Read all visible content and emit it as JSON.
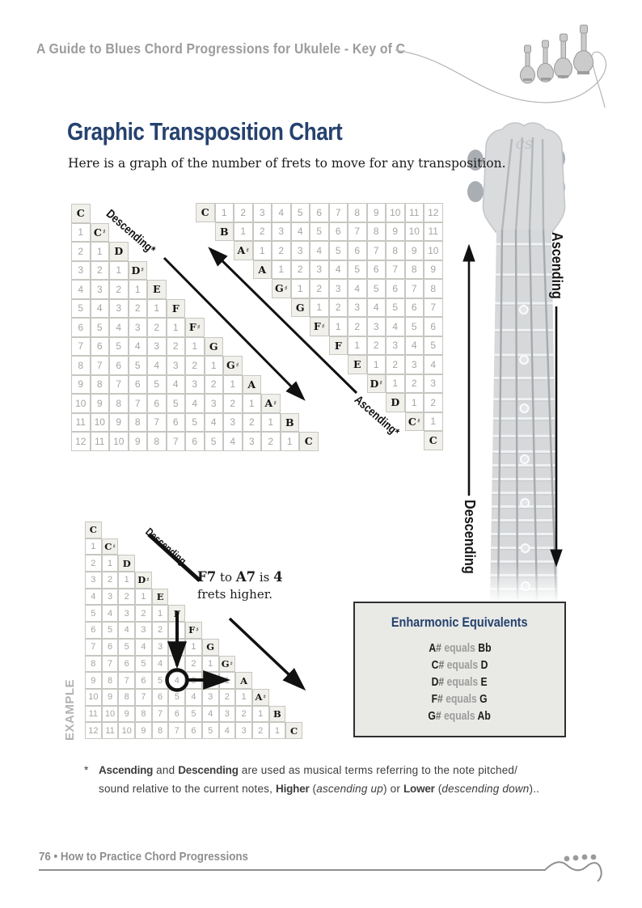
{
  "page": {
    "header": "A Guide to Blues Chord Progressions for Ukulele - Key of C",
    "title": "Graphic Transposition Chart",
    "subtitle": "Here is a graph of the number of frets to move for any transposition.",
    "footer": "76 • How to Practice Chord Progressions"
  },
  "labels": {
    "descending_star": "Descending*",
    "ascending_star": "Ascending*",
    "example_descending": "Descending",
    "example": "EXAMPLE",
    "neck_ascending": "Ascending",
    "neck_descending": "Descending",
    "headstock_logo": "CS"
  },
  "colors": {
    "title_navy": "#25426f",
    "header_gray": "#9c9c9c",
    "number_gray": "#a5a5a1",
    "note_cell_bg": "#f1f0eb",
    "cell_border": "#c7c7c2",
    "enharmonic_box_bg": "#e9e9e6",
    "footer_gray": "#8e8e8e"
  },
  "tables": {
    "descending": {
      "type": "lower",
      "rows": [
        [
          "C"
        ],
        [
          "1",
          "C♯"
        ],
        [
          "2",
          "1",
          "D"
        ],
        [
          "3",
          "2",
          "1",
          "D♯"
        ],
        [
          "4",
          "3",
          "2",
          "1",
          "E"
        ],
        [
          "5",
          "4",
          "3",
          "2",
          "1",
          "F"
        ],
        [
          "6",
          "5",
          "4",
          "3",
          "2",
          "1",
          "F♯"
        ],
        [
          "7",
          "6",
          "5",
          "4",
          "3",
          "2",
          "1",
          "G"
        ],
        [
          "8",
          "7",
          "6",
          "5",
          "4",
          "3",
          "2",
          "1",
          "G♯"
        ],
        [
          "9",
          "8",
          "7",
          "6",
          "5",
          "4",
          "3",
          "2",
          "1",
          "A"
        ],
        [
          "10",
          "9",
          "8",
          "7",
          "6",
          "5",
          "4",
          "3",
          "2",
          "1",
          "A♯"
        ],
        [
          "11",
          "10",
          "9",
          "8",
          "7",
          "6",
          "5",
          "4",
          "3",
          "2",
          "1",
          "B"
        ],
        [
          "12",
          "11",
          "10",
          "9",
          "8",
          "7",
          "6",
          "5",
          "4",
          "3",
          "2",
          "1",
          "C"
        ]
      ]
    },
    "ascending": {
      "type": "upper",
      "rows": [
        [
          "C",
          "1",
          "2",
          "3",
          "4",
          "5",
          "6",
          "7",
          "8",
          "9",
          "10",
          "11",
          "12"
        ],
        [
          "B",
          "1",
          "2",
          "3",
          "4",
          "5",
          "6",
          "7",
          "8",
          "9",
          "10",
          "11"
        ],
        [
          "A♯",
          "1",
          "2",
          "3",
          "4",
          "5",
          "6",
          "7",
          "8",
          "9",
          "10"
        ],
        [
          "A",
          "1",
          "2",
          "3",
          "4",
          "5",
          "6",
          "7",
          "8",
          "9"
        ],
        [
          "G♯",
          "1",
          "2",
          "3",
          "4",
          "5",
          "6",
          "7",
          "8"
        ],
        [
          "G",
          "1",
          "2",
          "3",
          "4",
          "5",
          "6",
          "7"
        ],
        [
          "F♯",
          "1",
          "2",
          "3",
          "4",
          "5",
          "6"
        ],
        [
          "F",
          "1",
          "2",
          "3",
          "4",
          "5"
        ],
        [
          "E",
          "1",
          "2",
          "3",
          "4"
        ],
        [
          "D♯",
          "1",
          "2",
          "3"
        ],
        [
          "D",
          "1",
          "2"
        ],
        [
          "C♯",
          "1"
        ],
        [
          "C"
        ]
      ]
    },
    "example": {
      "type": "lower",
      "rows": [
        [
          "C"
        ],
        [
          "1",
          "C♯"
        ],
        [
          "2",
          "1",
          "D"
        ],
        [
          "3",
          "2",
          "1",
          "D♯"
        ],
        [
          "4",
          "3",
          "2",
          "1",
          "E"
        ],
        [
          "5",
          "4",
          "3",
          "2",
          "1",
          "F"
        ],
        [
          "6",
          "5",
          "4",
          "3",
          "2",
          "1",
          "F♯"
        ],
        [
          "7",
          "6",
          "5",
          "4",
          "3",
          "2",
          "1",
          "G"
        ],
        [
          "8",
          "7",
          "6",
          "5",
          "4",
          "3",
          "2",
          "1",
          "G♯"
        ],
        [
          "9",
          "8",
          "7",
          "6",
          "5",
          "4",
          "3",
          "2",
          "1",
          "A"
        ],
        [
          "10",
          "9",
          "8",
          "7",
          "6",
          "5",
          "4",
          "3",
          "2",
          "1",
          "A♯"
        ],
        [
          "11",
          "10",
          "9",
          "8",
          "7",
          "6",
          "5",
          "4",
          "3",
          "2",
          "1",
          "B"
        ],
        [
          "12",
          "11",
          "10",
          "9",
          "8",
          "7",
          "6",
          "5",
          "4",
          "3",
          "2",
          "1",
          "C"
        ]
      ]
    }
  },
  "callout": {
    "line1": [
      {
        "t": "F7",
        "b": 1
      },
      {
        "t": " to "
      },
      {
        "t": "A7",
        "b": 1
      },
      {
        "t": " is "
      },
      {
        "t": "4",
        "b": 1
      }
    ],
    "line2": "frets higher."
  },
  "enharmonic": {
    "title": "Enharmonic Equivalents",
    "pairs": [
      {
        "sharp": "A#",
        "word": "equals",
        "flat": "Bb"
      },
      {
        "sharp": "C#",
        "word": "equals",
        "flat": "D"
      },
      {
        "sharp": "D#",
        "word": "equals",
        "flat": "E"
      },
      {
        "sharp": "F#",
        "word": "equals",
        "flat": "G"
      },
      {
        "sharp": "G#",
        "word": "equals",
        "flat": "Ab"
      }
    ]
  },
  "footnote": {
    "marker": "*",
    "line1": [
      {
        "t": "Ascending",
        "b": 1
      },
      {
        "t": " and "
      },
      {
        "t": "Descending",
        "b": 1
      },
      {
        "t": " are used as musical terms referring to the note pitched/"
      }
    ],
    "line2": [
      {
        "t": "sound relative to the current notes, "
      },
      {
        "t": "Higher",
        "b": 1
      },
      {
        "t": " ("
      },
      {
        "t": "ascending up",
        "i": 1
      },
      {
        "t": ") or "
      },
      {
        "t": "Lower",
        "b": 1
      },
      {
        "t": " ("
      },
      {
        "t": "descending down",
        "i": 1
      },
      {
        "t": ").."
      }
    ]
  }
}
